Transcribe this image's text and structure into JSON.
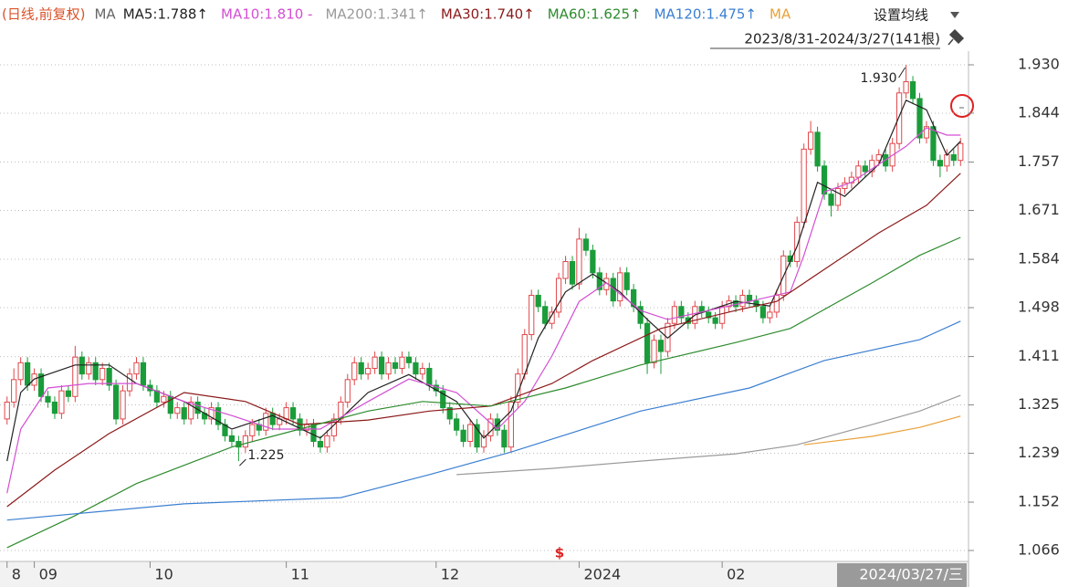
{
  "chart_data": {
    "type": "candlestick",
    "header": "(日线,前复权)",
    "ma_title": "MA",
    "settings": "设置均线",
    "range": "2023/8/31-2024/3/27(141根)",
    "cursor_label": "2024/03/27/三",
    "bottom_marker": "$",
    "ylim": [
      1.0465,
      1.956
    ],
    "yticks": [
      {
        "value": 1.93,
        "label": "1.930"
      },
      1.844,
      1.757,
      1.671,
      1.584,
      1.498,
      1.411,
      1.325,
      1.239,
      1.152,
      1.066
    ],
    "grid": true,
    "xticks": [
      {
        "value": 0,
        "label": "8"
      },
      {
        "value": 4,
        "label": "09"
      },
      {
        "value": 21,
        "label": "10"
      },
      {
        "value": 41,
        "label": "11"
      },
      {
        "value": 63,
        "label": "12"
      },
      {
        "value": 84,
        "label": "2024"
      },
      {
        "value": 105,
        "label": "02"
      }
    ],
    "up_color": "#e0474c",
    "down_color": "#1a9c3a",
    "candles": [
      [
        1.3,
        1.34,
        1.29,
        1.33
      ],
      [
        1.33,
        1.39,
        1.32,
        1.37
      ],
      [
        1.37,
        1.41,
        1.36,
        1.4
      ],
      [
        1.4,
        1.41,
        1.35,
        1.36
      ],
      [
        1.36,
        1.39,
        1.35,
        1.38
      ],
      [
        1.38,
        1.39,
        1.33,
        1.34
      ],
      [
        1.34,
        1.35,
        1.32,
        1.33
      ],
      [
        1.33,
        1.34,
        1.3,
        1.31
      ],
      [
        1.31,
        1.36,
        1.3,
        1.35
      ],
      [
        1.35,
        1.36,
        1.33,
        1.34
      ],
      [
        1.34,
        1.43,
        1.33,
        1.41
      ],
      [
        1.41,
        1.42,
        1.37,
        1.38
      ],
      [
        1.38,
        1.41,
        1.37,
        1.4
      ],
      [
        1.4,
        1.41,
        1.36,
        1.37
      ],
      [
        1.37,
        1.4,
        1.36,
        1.39
      ],
      [
        1.39,
        1.4,
        1.35,
        1.36
      ],
      [
        1.36,
        1.37,
        1.29,
        1.3
      ],
      [
        1.3,
        1.36,
        1.29,
        1.35
      ],
      [
        1.35,
        1.39,
        1.34,
        1.38
      ],
      [
        1.38,
        1.41,
        1.37,
        1.4
      ],
      [
        1.4,
        1.41,
        1.35,
        1.36
      ],
      [
        1.36,
        1.37,
        1.34,
        1.35
      ],
      [
        1.35,
        1.36,
        1.32,
        1.33
      ],
      [
        1.33,
        1.35,
        1.32,
        1.34
      ],
      [
        1.34,
        1.35,
        1.3,
        1.31
      ],
      [
        1.31,
        1.33,
        1.3,
        1.32
      ],
      [
        1.32,
        1.33,
        1.29,
        1.3
      ],
      [
        1.3,
        1.34,
        1.29,
        1.33
      ],
      [
        1.33,
        1.34,
        1.3,
        1.31
      ],
      [
        1.31,
        1.32,
        1.29,
        1.3
      ],
      [
        1.3,
        1.33,
        1.29,
        1.32
      ],
      [
        1.32,
        1.33,
        1.28,
        1.29
      ],
      [
        1.29,
        1.3,
        1.26,
        1.27
      ],
      [
        1.27,
        1.28,
        1.25,
        1.26
      ],
      [
        1.26,
        1.27,
        1.225,
        1.25
      ],
      [
        1.25,
        1.28,
        1.24,
        1.27
      ],
      [
        1.27,
        1.3,
        1.26,
        1.29
      ],
      [
        1.29,
        1.3,
        1.27,
        1.28
      ],
      [
        1.28,
        1.32,
        1.27,
        1.31
      ],
      [
        1.31,
        1.32,
        1.28,
        1.29
      ],
      [
        1.29,
        1.31,
        1.28,
        1.3
      ],
      [
        1.3,
        1.33,
        1.29,
        1.32
      ],
      [
        1.32,
        1.33,
        1.29,
        1.3
      ],
      [
        1.3,
        1.31,
        1.27,
        1.28
      ],
      [
        1.28,
        1.3,
        1.27,
        1.29
      ],
      [
        1.29,
        1.3,
        1.25,
        1.26
      ],
      [
        1.26,
        1.27,
        1.24,
        1.25
      ],
      [
        1.25,
        1.28,
        1.24,
        1.27
      ],
      [
        1.27,
        1.31,
        1.26,
        1.3
      ],
      [
        1.3,
        1.34,
        1.29,
        1.33
      ],
      [
        1.33,
        1.38,
        1.32,
        1.37
      ],
      [
        1.37,
        1.41,
        1.36,
        1.4
      ],
      [
        1.4,
        1.41,
        1.37,
        1.38
      ],
      [
        1.38,
        1.4,
        1.37,
        1.39
      ],
      [
        1.39,
        1.42,
        1.38,
        1.41
      ],
      [
        1.41,
        1.42,
        1.37,
        1.38
      ],
      [
        1.38,
        1.41,
        1.37,
        1.4
      ],
      [
        1.4,
        1.41,
        1.38,
        1.39
      ],
      [
        1.39,
        1.42,
        1.38,
        1.41
      ],
      [
        1.41,
        1.42,
        1.39,
        1.4
      ],
      [
        1.4,
        1.41,
        1.37,
        1.38
      ],
      [
        1.38,
        1.4,
        1.37,
        1.39
      ],
      [
        1.39,
        1.4,
        1.35,
        1.36
      ],
      [
        1.36,
        1.37,
        1.34,
        1.35
      ],
      [
        1.35,
        1.36,
        1.31,
        1.32
      ],
      [
        1.32,
        1.33,
        1.29,
        1.3
      ],
      [
        1.3,
        1.31,
        1.27,
        1.28
      ],
      [
        1.28,
        1.29,
        1.25,
        1.26
      ],
      [
        1.26,
        1.3,
        1.25,
        1.29
      ],
      [
        1.29,
        1.3,
        1.24,
        1.25
      ],
      [
        1.25,
        1.28,
        1.24,
        1.27
      ],
      [
        1.27,
        1.31,
        1.26,
        1.3
      ],
      [
        1.3,
        1.31,
        1.27,
        1.28
      ],
      [
        1.28,
        1.29,
        1.24,
        1.25
      ],
      [
        1.25,
        1.34,
        1.24,
        1.33
      ],
      [
        1.33,
        1.39,
        1.32,
        1.38
      ],
      [
        1.38,
        1.46,
        1.37,
        1.45
      ],
      [
        1.45,
        1.53,
        1.44,
        1.52
      ],
      [
        1.52,
        1.53,
        1.49,
        1.5
      ],
      [
        1.5,
        1.51,
        1.46,
        1.47
      ],
      [
        1.47,
        1.5,
        1.46,
        1.49
      ],
      [
        1.49,
        1.56,
        1.48,
        1.55
      ],
      [
        1.55,
        1.59,
        1.54,
        1.58
      ],
      [
        1.58,
        1.59,
        1.53,
        1.54
      ],
      [
        1.54,
        1.64,
        1.53,
        1.62
      ],
      [
        1.62,
        1.63,
        1.59,
        1.6
      ],
      [
        1.6,
        1.61,
        1.55,
        1.56
      ],
      [
        1.56,
        1.57,
        1.52,
        1.53
      ],
      [
        1.53,
        1.56,
        1.52,
        1.55
      ],
      [
        1.55,
        1.56,
        1.5,
        1.51
      ],
      [
        1.51,
        1.57,
        1.5,
        1.56
      ],
      [
        1.56,
        1.57,
        1.52,
        1.53
      ],
      [
        1.53,
        1.54,
        1.49,
        1.5
      ],
      [
        1.5,
        1.51,
        1.46,
        1.47
      ],
      [
        1.47,
        1.48,
        1.38,
        1.4
      ],
      [
        1.4,
        1.45,
        1.39,
        1.44
      ],
      [
        1.44,
        1.45,
        1.38,
        1.42
      ],
      [
        1.42,
        1.48,
        1.41,
        1.47
      ],
      [
        1.47,
        1.51,
        1.46,
        1.5
      ],
      [
        1.5,
        1.51,
        1.47,
        1.48
      ],
      [
        1.48,
        1.49,
        1.46,
        1.47
      ],
      [
        1.47,
        1.51,
        1.46,
        1.5
      ],
      [
        1.5,
        1.51,
        1.48,
        1.49
      ],
      [
        1.49,
        1.5,
        1.47,
        1.48
      ],
      [
        1.48,
        1.49,
        1.46,
        1.47
      ],
      [
        1.47,
        1.51,
        1.46,
        1.5
      ],
      [
        1.5,
        1.52,
        1.49,
        1.51
      ],
      [
        1.51,
        1.52,
        1.49,
        1.5
      ],
      [
        1.5,
        1.53,
        1.49,
        1.52
      ],
      [
        1.52,
        1.53,
        1.5,
        1.51
      ],
      [
        1.51,
        1.52,
        1.49,
        1.5
      ],
      [
        1.5,
        1.51,
        1.47,
        1.48
      ],
      [
        1.48,
        1.5,
        1.47,
        1.49
      ],
      [
        1.49,
        1.53,
        1.48,
        1.52
      ],
      [
        1.52,
        1.6,
        1.51,
        1.59
      ],
      [
        1.59,
        1.6,
        1.57,
        1.58
      ],
      [
        1.58,
        1.66,
        1.57,
        1.65
      ],
      [
        1.65,
        1.79,
        1.64,
        1.78
      ],
      [
        1.78,
        1.83,
        1.77,
        1.81
      ],
      [
        1.81,
        1.82,
        1.74,
        1.75
      ],
      [
        1.75,
        1.76,
        1.69,
        1.7
      ],
      [
        1.7,
        1.71,
        1.66,
        1.68
      ],
      [
        1.68,
        1.72,
        1.67,
        1.71
      ],
      [
        1.71,
        1.73,
        1.7,
        1.72
      ],
      [
        1.72,
        1.74,
        1.71,
        1.73
      ],
      [
        1.73,
        1.76,
        1.72,
        1.75
      ],
      [
        1.75,
        1.76,
        1.73,
        1.74
      ],
      [
        1.74,
        1.77,
        1.73,
        1.76
      ],
      [
        1.76,
        1.78,
        1.75,
        1.77
      ],
      [
        1.77,
        1.78,
        1.74,
        1.75
      ],
      [
        1.75,
        1.8,
        1.74,
        1.79
      ],
      [
        1.79,
        1.89,
        1.78,
        1.88
      ],
      [
        1.88,
        1.93,
        1.87,
        1.9
      ],
      [
        1.9,
        1.91,
        1.86,
        1.87
      ],
      [
        1.87,
        1.88,
        1.79,
        1.8
      ],
      [
        1.8,
        1.83,
        1.79,
        1.82
      ],
      [
        1.82,
        1.83,
        1.75,
        1.76
      ],
      [
        1.76,
        1.77,
        1.73,
        1.75
      ],
      [
        1.75,
        1.78,
        1.74,
        1.77
      ],
      [
        1.77,
        1.78,
        1.75,
        1.76
      ],
      [
        1.76,
        1.8,
        1.75,
        1.79
      ]
    ],
    "series": [
      {
        "name": "MA5",
        "label": "MA5:1.788↑",
        "color": "#222222",
        "x": [
          0,
          2,
          4,
          10,
          15,
          19,
          26,
          33,
          39,
          46,
          53,
          59,
          66,
          70,
          74,
          78,
          82,
          86,
          90,
          94,
          97,
          101,
          107,
          112,
          116,
          119,
          123,
          128,
          132,
          135,
          138,
          140
        ],
        "values": [
          1.225,
          1.347,
          1.371,
          1.396,
          1.396,
          1.363,
          1.331,
          1.282,
          1.306,
          1.266,
          1.347,
          1.379,
          1.331,
          1.266,
          1.314,
          1.444,
          1.526,
          1.558,
          1.526,
          1.477,
          1.444,
          1.485,
          1.509,
          1.501,
          1.607,
          1.721,
          1.696,
          1.753,
          1.867,
          1.85,
          1.769,
          1.794
        ]
      },
      {
        "name": "MA10",
        "label": "MA10:1.810 -",
        "color": "#d34fd3",
        "x": [
          0,
          2,
          6,
          12,
          19,
          26,
          33,
          39,
          46,
          53,
          59,
          66,
          72,
          76,
          80,
          84,
          88,
          93,
          97,
          103,
          109,
          115,
          117,
          120,
          124,
          128,
          132,
          135,
          138,
          140
        ],
        "values": [
          1.168,
          1.282,
          1.355,
          1.363,
          1.363,
          1.331,
          1.306,
          1.282,
          1.282,
          1.331,
          1.371,
          1.347,
          1.282,
          1.331,
          1.412,
          1.509,
          1.542,
          1.493,
          1.477,
          1.493,
          1.509,
          1.526,
          1.591,
          1.704,
          1.721,
          1.753,
          1.785,
          1.818,
          1.805,
          1.805
        ]
      },
      {
        "name": "MA200",
        "label": "MA200:1.341↑",
        "color": "#9a9a9a",
        "x": [
          66,
          80,
          93,
          107,
          116,
          127,
          134,
          140
        ],
        "values": [
          1.201,
          1.212,
          1.225,
          1.238,
          1.254,
          1.29,
          1.314,
          1.342
        ]
      },
      {
        "name": "MA30",
        "label": "MA30:1.740↑",
        "color": "#8b1a1a",
        "x": [
          0,
          7,
          15,
          26,
          35,
          43,
          53,
          62,
          71,
          80,
          86,
          96,
          107,
          113,
          120,
          128,
          135,
          140
        ],
        "values": [
          1.144,
          1.209,
          1.274,
          1.347,
          1.331,
          1.29,
          1.298,
          1.314,
          1.323,
          1.363,
          1.404,
          1.461,
          1.493,
          1.509,
          1.566,
          1.631,
          1.68,
          1.737
        ]
      },
      {
        "name": "MA60",
        "label": "MA60:1.625↑",
        "color": "#2e8b2e",
        "x": [
          0,
          10,
          19,
          33,
          43,
          53,
          61,
          71,
          82,
          93,
          107,
          115,
          127,
          134,
          140
        ],
        "values": [
          1.071,
          1.128,
          1.185,
          1.25,
          1.282,
          1.314,
          1.331,
          1.323,
          1.355,
          1.396,
          1.436,
          1.461,
          1.542,
          1.591,
          1.623
        ]
      },
      {
        "name": "MA120",
        "label": "MA120:1.475↑",
        "color": "#3b7fd1",
        "x": [
          0,
          26,
          49,
          62,
          74,
          93,
          109,
          120,
          134,
          140
        ],
        "values": [
          1.12,
          1.149,
          1.16,
          1.201,
          1.241,
          1.314,
          1.355,
          1.404,
          1.441,
          1.474
        ]
      },
      {
        "name": "MA",
        "label": "MA",
        "color": "#e8a13a",
        "x": [
          117,
          127,
          134,
          140
        ],
        "values": [
          1.254,
          1.269,
          1.285,
          1.305
        ]
      }
    ],
    "annotations": [
      {
        "x": 132,
        "y": 1.93,
        "text": "1.930"
      },
      {
        "x": 34,
        "y": 1.225,
        "text": "1.225"
      }
    ]
  }
}
